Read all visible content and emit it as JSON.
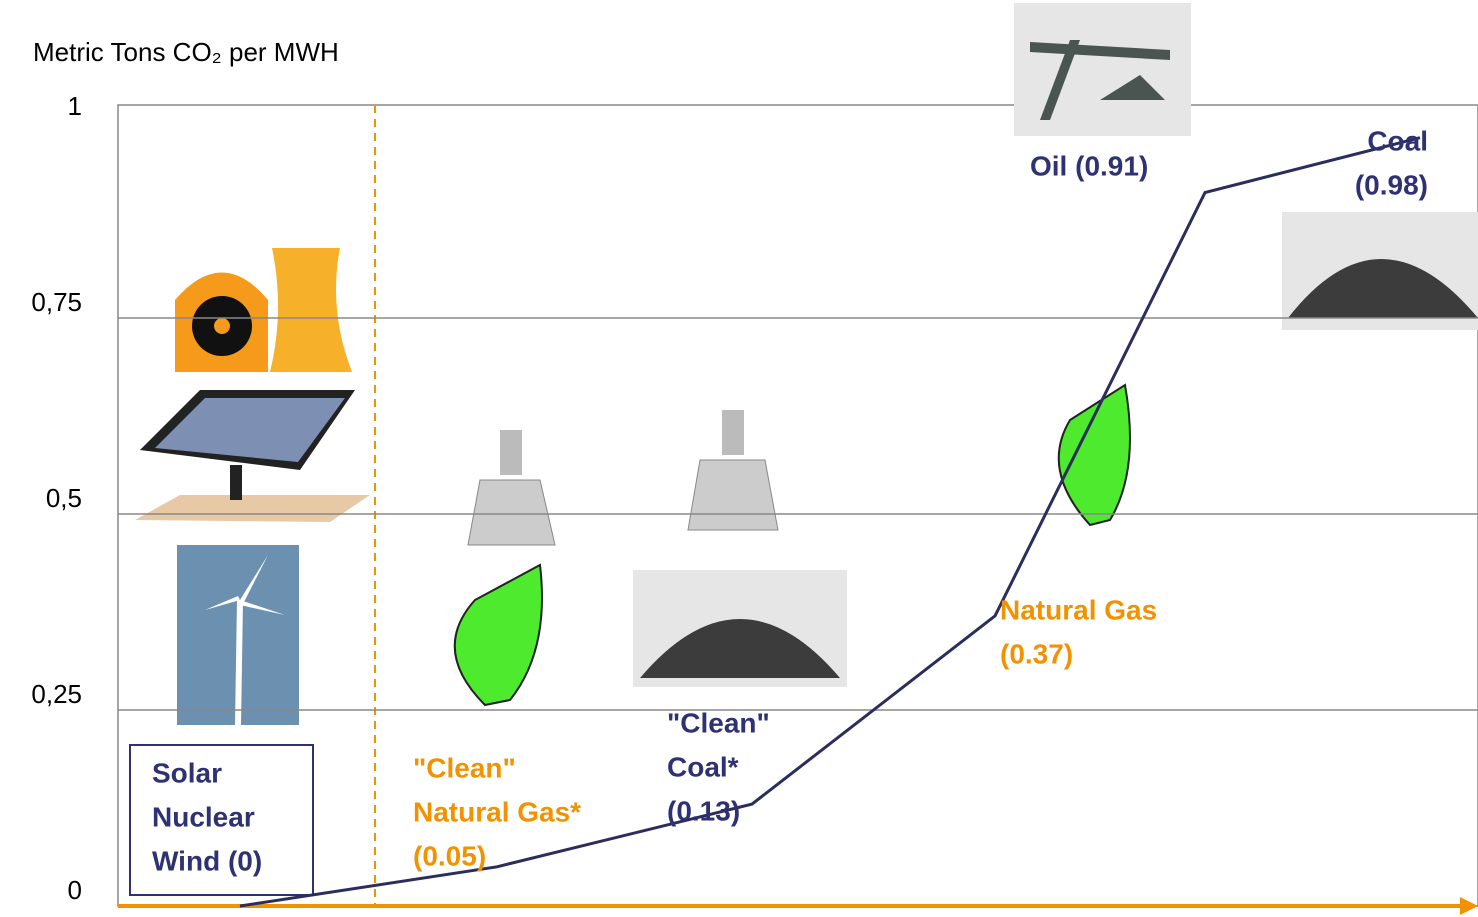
{
  "chart_data": {
    "type": "line",
    "title": "Metric Tons CO₂ per MWH",
    "categories": [
      [
        "Solar",
        "Nuclear",
        "Wind (0)"
      ],
      [
        "\"Clean\"",
        "Natural Gas*",
        "(0.05)"
      ],
      [
        "\"Clean\"",
        "Coal*",
        "(0.13)"
      ],
      [
        "Natural Gas",
        "(0.37)"
      ],
      [
        "Oil (0.91)"
      ],
      [
        "Coal",
        "(0.98)"
      ]
    ],
    "values": [
      0,
      0.05,
      0.13,
      0.37,
      0.91,
      0.98
    ],
    "color": "#2b2d5c",
    "label_colors": [
      "#2e3172",
      "#f39200",
      "#2e3172",
      "#f39200",
      "#2e3172",
      "#2e3172"
    ],
    "ylim": [
      0,
      1
    ],
    "yticks": [
      0,
      {
        "value": 0.25,
        "label": "0,25"
      },
      {
        "value": 0.5,
        "label": "0,5"
      },
      {
        "value": 0.75,
        "label": "0,75"
      },
      1
    ],
    "grid": true
  }
}
